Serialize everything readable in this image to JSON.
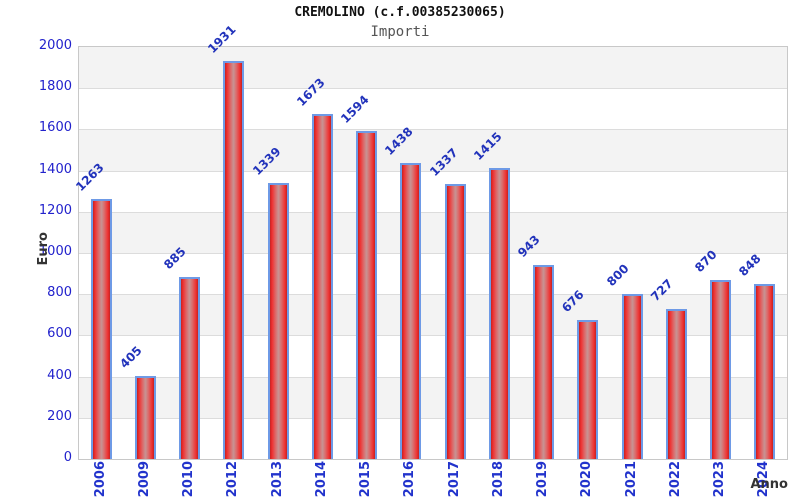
{
  "header": {
    "title": "CREMOLINO (c.f.00385230065)",
    "subtitle": "Importi"
  },
  "chart_data": {
    "type": "bar",
    "title": "CREMOLINO (c.f.00385230065)",
    "subtitle": "Importi",
    "xlabel": "Anno",
    "ylabel": "Euro",
    "categories": [
      "2006",
      "2009",
      "2010",
      "2012",
      "2013",
      "2014",
      "2015",
      "2016",
      "2017",
      "2018",
      "2019",
      "2020",
      "2021",
      "2022",
      "2023",
      "2024"
    ],
    "values": [
      1263,
      405,
      885,
      1931,
      1339,
      1673,
      1594,
      1438,
      1337,
      1415,
      943,
      676,
      800,
      727,
      870,
      848
    ],
    "ylim": [
      0,
      2000
    ],
    "ytick_step": 200,
    "grid": true,
    "legend": "none",
    "colors": {
      "band_gray": "#f3f3f3",
      "band_white": "#ffffff",
      "gridline": "#dcdcdc",
      "bar_border": "#6e9ae6",
      "bar_red_edge": "#c32222",
      "bar_red_bright": "#ef3030",
      "bar_red_center": "#c79494",
      "value_label": "#2233bb",
      "axis_text": "#2222cc",
      "axis_title": "#333333",
      "title": "#111111",
      "subtitle": "#555555"
    }
  }
}
